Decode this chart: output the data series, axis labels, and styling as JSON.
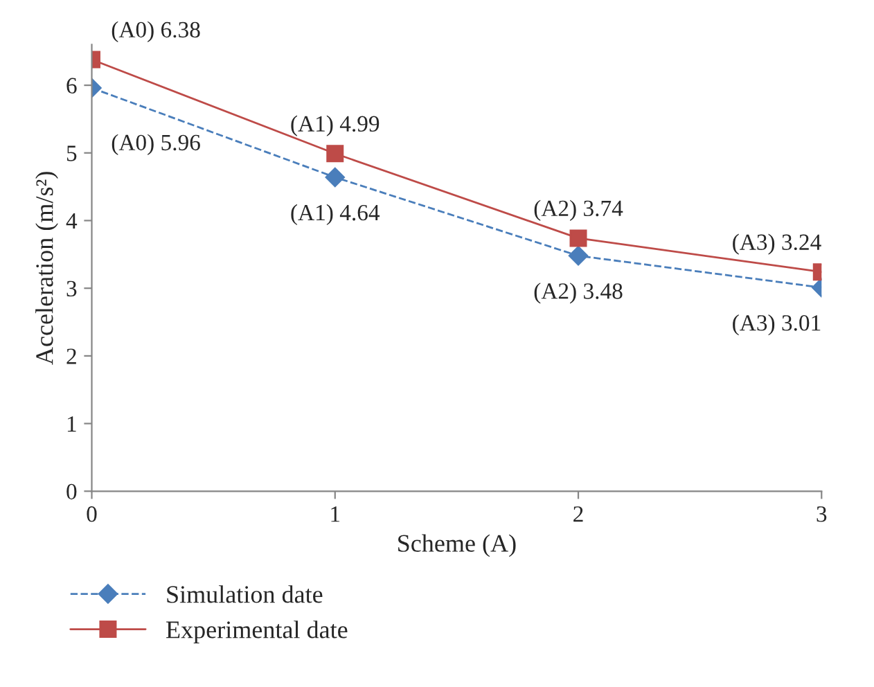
{
  "chart_data": {
    "type": "line",
    "xlabel": "Scheme (A)",
    "ylabel": "Acceleration (m/s²)",
    "x": [
      0,
      1,
      2,
      3
    ],
    "xlim": [
      0,
      3
    ],
    "xticks": [
      0,
      1,
      2,
      3
    ],
    "ylim": [
      0,
      6.6
    ],
    "yticks": [
      0,
      1,
      2,
      3,
      4,
      5,
      6
    ],
    "grid": false,
    "legend": "bottom",
    "series": [
      {
        "name": "Simulation date",
        "color": "#4a7ebb",
        "marker": "diamond",
        "line_style": "dashed",
        "values": [
          5.96,
          4.64,
          3.48,
          3.01
        ],
        "value_labels": [
          "(A0) 5.96",
          "(A1) 4.64",
          "(A2) 3.48",
          "(A3) 3.01"
        ]
      },
      {
        "name": "Experimental date",
        "color": "#be4b48",
        "marker": "square",
        "line_style": "solid",
        "values": [
          6.38,
          4.99,
          3.74,
          3.24
        ],
        "value_labels": [
          "(A0) 6.38",
          "(A1) 4.99",
          "(A2) 3.74",
          "(A3) 3.24"
        ]
      }
    ]
  }
}
